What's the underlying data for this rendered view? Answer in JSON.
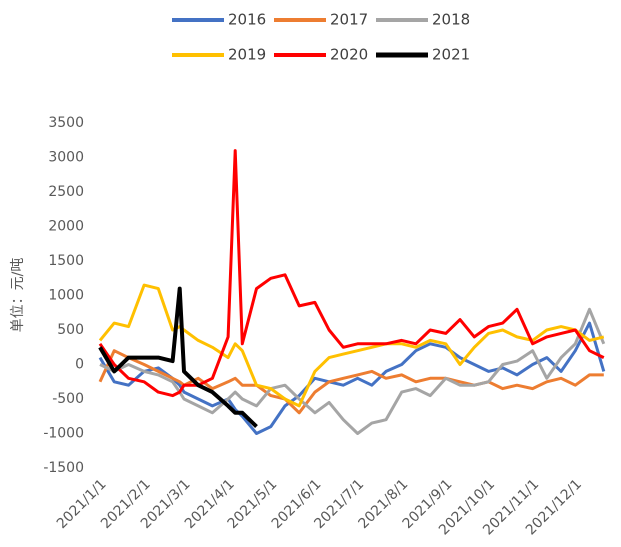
{
  "chart_data": {
    "type": "line",
    "y_label": "单位：元/吨",
    "x": [
      "2021/1/1",
      "2021/1/11",
      "2021/1/21",
      "2021/2/1",
      "2021/2/11",
      "2021/2/21",
      "2021/2/26",
      "2021/3/1",
      "2021/3/11",
      "2021/3/21",
      "2021/4/1",
      "2021/4/6",
      "2021/4/11",
      "2021/4/21",
      "2021/5/1",
      "2021/5/11",
      "2021/5/21",
      "2021/6/1",
      "2021/6/11",
      "2021/6/21",
      "2021/7/1",
      "2021/7/11",
      "2021/7/21",
      "2021/8/1",
      "2021/8/11",
      "2021/8/21",
      "2021/9/1",
      "2021/9/11",
      "2021/9/21",
      "2021/10/1",
      "2021/10/11",
      "2021/10/21",
      "2021/11/1",
      "2021/11/11",
      "2021/11/21",
      "2021/12/1",
      "2021/12/11",
      "2021/12/21"
    ],
    "xlim": [
      "2021/1/1",
      "2021/12/31"
    ],
    "xticks": [
      "2021/1/1",
      "2021/2/1",
      "2021/3/1",
      "2021/4/1",
      "2021/5/1",
      "2021/6/1",
      "2021/7/1",
      "2021/8/1",
      "2021/9/1",
      "2021/10/1",
      "2021/11/1",
      "2021/12/1"
    ],
    "ylim": [
      -1500,
      3500
    ],
    "yticks": [
      -1500,
      -1000,
      -500,
      0,
      500,
      1000,
      1500,
      2000,
      2500,
      3000,
      3500
    ],
    "grid": false,
    "series": [
      {
        "name": "2016",
        "color": "#4472c4",
        "values": [
          100,
          -250,
          -300,
          -100,
          -50,
          -200,
          -300,
          -400,
          -500,
          -600,
          -500,
          -650,
          -750,
          -1000,
          -900,
          -600,
          -450,
          -200,
          -250,
          -300,
          -200,
          -300,
          -100,
          0,
          200,
          300,
          250,
          100,
          0,
          -100,
          -50,
          -150,
          0,
          100,
          -100,
          200,
          600,
          -100
        ]
      },
      {
        "name": "2017",
        "color": "#ed7d31",
        "values": [
          -250,
          200,
          100,
          0,
          -100,
          -200,
          -250,
          -300,
          -200,
          -350,
          -250,
          -200,
          -300,
          -300,
          -450,
          -500,
          -700,
          -400,
          -250,
          -200,
          -150,
          -100,
          -200,
          -150,
          -250,
          -200,
          -200,
          -250,
          -300,
          -250,
          -350,
          -300,
          -350,
          -250,
          -200,
          -300,
          -150,
          -150
        ]
      },
      {
        "name": "2018",
        "color": "#a5a5a5",
        "values": [
          0,
          -100,
          0,
          -100,
          -150,
          -250,
          -400,
          -500,
          -600,
          -700,
          -500,
          -400,
          -500,
          -600,
          -350,
          -300,
          -500,
          -700,
          -550,
          -800,
          -1000,
          -850,
          -800,
          -400,
          -350,
          -450,
          -200,
          -300,
          -300,
          -250,
          0,
          50,
          200,
          -200,
          100,
          300,
          800,
          300
        ]
      },
      {
        "name": "2019",
        "color": "#ffc000",
        "values": [
          350,
          600,
          550,
          1150,
          1100,
          500,
          550,
          500,
          350,
          250,
          100,
          300,
          200,
          -300,
          -350,
          -500,
          -600,
          -100,
          100,
          150,
          200,
          250,
          300,
          300,
          250,
          350,
          300,
          0,
          250,
          450,
          500,
          400,
          350,
          500,
          550,
          500,
          350,
          400
        ]
      },
      {
        "name": "2020",
        "color": "#ff0000",
        "values": [
          300,
          0,
          -200,
          -250,
          -400,
          -450,
          -400,
          -300,
          -300,
          -200,
          400,
          3100,
          300,
          1100,
          1250,
          1300,
          850,
          900,
          500,
          250,
          300,
          300,
          300,
          350,
          300,
          500,
          450,
          650,
          400,
          550,
          600,
          800,
          300,
          400,
          450,
          500,
          200,
          100
        ]
      },
      {
        "name": "2021",
        "color": "#000000",
        "values": [
          250,
          -100,
          100,
          100,
          100,
          50,
          1100,
          -100,
          -300,
          -400,
          -600,
          -700,
          -700,
          -900,
          null,
          null,
          null,
          null,
          null,
          null,
          null,
          null,
          null,
          null,
          null,
          null,
          null,
          null,
          null,
          null,
          null,
          null,
          null,
          null,
          null,
          null,
          null,
          null
        ]
      }
    ]
  }
}
